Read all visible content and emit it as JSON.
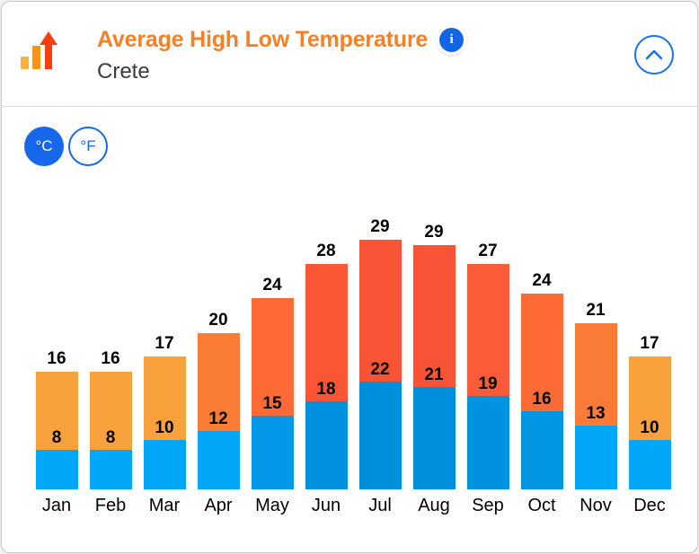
{
  "card": {
    "header": {
      "title": "Average High Low Temperature",
      "subtitle": "Crete",
      "info_icon_glyph": "i",
      "collapse_icon": "chevron-up"
    },
    "unit_toggle": {
      "celsius_label": "°C",
      "fahrenheit_label": "°F",
      "selected": "°C"
    }
  },
  "colors": {
    "accent_blue": "#1667EB",
    "info_badge_blue": "#1464E6",
    "title_orange": "#F58025",
    "subtitle_gray": "#3A3A40",
    "card_border": "#C9CACC",
    "divider": "#D9D9D9",
    "value_label": "#000000",
    "trend_icon_gold": "#FBB03B",
    "trend_icon_orange": "#F7931E",
    "trend_icon_red": "#FA3D0C"
  },
  "chart_data": {
    "type": "bar",
    "stacked": true,
    "title": "Average High Low Temperature",
    "subtitle": "Crete",
    "unit": "°C",
    "categories": [
      "Jan",
      "Feb",
      "Mar",
      "Apr",
      "May",
      "Jun",
      "Jul",
      "Aug",
      "Sep",
      "Oct",
      "Nov",
      "Dec"
    ],
    "series": [
      {
        "name": "Average Low",
        "stack_position": "bottom",
        "values": [
          8,
          8,
          10,
          12,
          15,
          18,
          22,
          21,
          19,
          16,
          13,
          10
        ],
        "colors": [
          "#02A7FA",
          "#02A7FA",
          "#02A7FA",
          "#02A7FA",
          "#0598E9",
          "#0092DF",
          "#0090DB",
          "#0090DB",
          "#0092DF",
          "#0096E4",
          "#02A7FA",
          "#02A7FA"
        ]
      },
      {
        "name": "Average High",
        "stack_position": "top",
        "values": [
          16,
          16,
          17,
          20,
          24,
          28,
          29,
          29,
          27,
          24,
          21,
          17
        ],
        "colors": [
          "#F9A23D",
          "#F9A23D",
          "#F9A23D",
          "#FB7D35",
          "#FE6A33",
          "#FA5535",
          "#F95335",
          "#F95335",
          "#FA5B38",
          "#FE6A33",
          "#FA7B37",
          "#F9A23D"
        ]
      }
    ],
    "value_labels": "high label above bar top, low label above blue segment",
    "axis": {
      "y_axis_shown": false,
      "x_labels_shown": true,
      "grid": false
    },
    "legend": "none"
  }
}
